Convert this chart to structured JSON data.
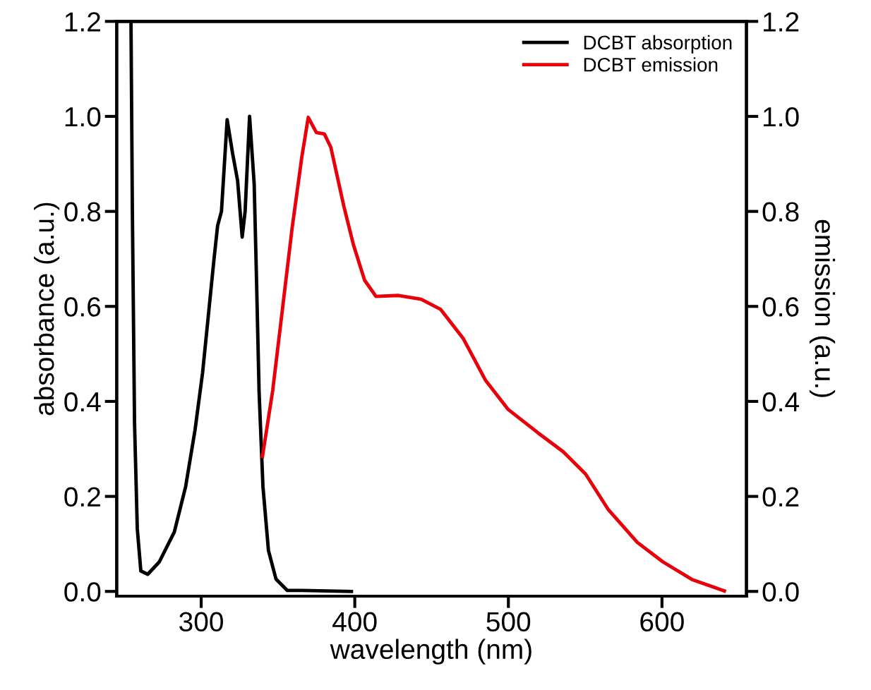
{
  "chart_data": {
    "type": "line",
    "xlabel": "wavelength (nm)",
    "ylabel": "absorbance (a.u.)",
    "y2label": "emission (a.u.)",
    "xlim": [
      245,
      655
    ],
    "xticks": [
      300,
      400,
      500,
      600
    ],
    "ylim": [
      -0.01,
      1.2
    ],
    "yticks": [
      {
        "value": 0,
        "label": "0.0"
      },
      0.2,
      0.4,
      0.6,
      0.8,
      {
        "value": 1,
        "label": "1.0"
      },
      1.2
    ],
    "y2lim": [
      -0.01,
      1.2
    ],
    "y2ticks": [
      {
        "value": 0,
        "label": "0.0"
      },
      0.2,
      0.4,
      0.6,
      0.8,
      {
        "value": 1,
        "label": "1.0"
      },
      1.2
    ],
    "legend": "top right",
    "grid": false,
    "series": [
      {
        "name": "DCBT absorption",
        "color": "#000000",
        "x": [
          254.3,
          255.2,
          256.6,
          258.4,
          260.7,
          265.2,
          272.7,
          282.5,
          289.9,
          296.0,
          300.9,
          304.6,
          308.3,
          310.7,
          313.2,
          316.9,
          320.5,
          323.7,
          326.7,
          328.6,
          331.5,
          334.5,
          336.0,
          337.7,
          340.2,
          343.8,
          348.7,
          356.1,
          365.8,
          397.8
        ],
        "values": [
          1.197,
          0.8,
          0.355,
          0.132,
          0.043,
          0.036,
          0.062,
          0.125,
          0.221,
          0.34,
          0.46,
          0.579,
          0.698,
          0.77,
          0.8,
          0.993,
          0.921,
          0.865,
          0.746,
          0.8,
          1.0,
          0.858,
          0.659,
          0.42,
          0.221,
          0.086,
          0.026,
          0.002,
          0.002,
          0.0
        ]
      },
      {
        "name": "DCBT emission",
        "color": "#e8000b",
        "x": [
          339.9,
          346.6,
          352.9,
          359.2,
          365.5,
          369.7,
          375.0,
          380.2,
          384.4,
          392.8,
          399.1,
          406.4,
          413.8,
          428.5,
          443.2,
          455.8,
          470.5,
          485.2,
          499.9,
          518.8,
          535.7,
          550.3,
          565.1,
          584.0,
          600.7,
          619.6,
          640.6
        ],
        "values": [
          0.284,
          0.424,
          0.594,
          0.765,
          0.914,
          0.998,
          0.966,
          0.963,
          0.935,
          0.812,
          0.73,
          0.655,
          0.621,
          0.623,
          0.615,
          0.594,
          0.533,
          0.444,
          0.383,
          0.335,
          0.294,
          0.247,
          0.172,
          0.103,
          0.062,
          0.025,
          0.001
        ]
      }
    ]
  }
}
